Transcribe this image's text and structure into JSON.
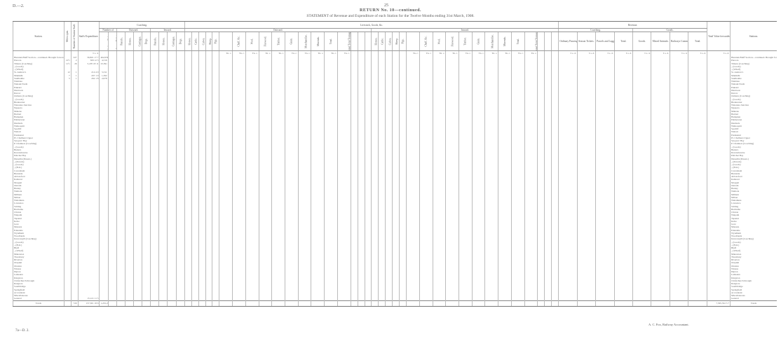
{
  "page": {
    "code": "D.—2.",
    "number": "25",
    "footer_code": "7a—D. 2.",
    "signature": "A. C. Fox, Railway Accountant."
  },
  "title": "RETURN No. 10—continued.",
  "subtitle": "STATEMENT of Revenue and Expenditure of each Station for the Twelve Months ending 31st March, 1908.",
  "headers": {
    "station": "Station.",
    "miles": "Miles open.",
    "staff": "Number of Station Staff.",
    "expenditure": "Staffs Expenditure.",
    "coaching": "Coaching.",
    "number_of": "Number of",
    "ordinary": "Ordinary Tickets.",
    "season": "Season Tickets.",
    "outward": "Outward.",
    "inward": "Inward.",
    "parcels": "Parcels.",
    "horses": "Horses.",
    "carriages": "Carriages.",
    "dogs": "Dogs.",
    "livestock": "Livestock, Goods, &c.",
    "cattle": "Cattle.",
    "calves": "Calves.",
    "sheep": "Sheep.",
    "pigs": "Pigs.",
    "goods_tonnage": "Goods Tonnage for Livestock, &c.",
    "chaff": "Chaff, &c.",
    "wool": "Wool.",
    "firewood": "Firewood.",
    "timber": "Timber.",
    "grain": "Grain.",
    "merchandise": "Merchandise.",
    "minerals": "Minerals.",
    "total": "Total.",
    "grand_total": "Grand Total Tonnage.",
    "revenue": "Revenue.",
    "ordinary_passengers": "Ordinary Passengers.",
    "season_tickets": "Season Tickets.",
    "parcels_luggage": "Parcels and Luggage.",
    "goods_section": "Goods.",
    "goods": "Goods.",
    "mixed": "Mixed Animals.",
    "commissions": "Railways Commissions.",
    "total_value": "Total Value forwarded.",
    "stations": "Stations."
  },
  "units": {
    "money": "£ s. d.",
    "tons": "Tn. c."
  },
  "rows": [
    {
      "station": "Hurunui-Bluff Section—continued. Brought forward",
      "miles": "",
      "staff": "327",
      "expenditure": "56,821 17 7",
      "ordinary": "462,639"
    },
    {
      "station": "Pareora",
      "miles": "12½",
      "staff": "2",
      "expenditure": "309 12 5",
      "ordinary": "4,316"
    },
    {
      "station": "Timaru (Coaching)",
      "miles": "11½",
      "staff": "26",
      "expenditure": "5,470 18 11",
      "ordinary": "23,391"
    },
    {
      "station": "„ (Goods)"
    },
    {
      "station": "„ (Wharf)"
    },
    {
      "station": "St. Andrew's",
      "miles": "12",
      "staff": "1",
      "expenditure": "214 4 9",
      "ordinary": "5,311"
    },
    {
      "station": "Makikihi",
      "miles": "7",
      "staff": "1",
      "expenditure": "207 1 0",
      "ordinary": "1,392"
    },
    {
      "station": "Studholme",
      "miles": "5",
      "staff": "1",
      "expenditure": "262 1 8",
      "ordinary": "2,678"
    },
    {
      "station": "Waimate"
    },
    {
      "station": "Waitaki North"
    },
    {
      "station": "Pukeuri"
    },
    {
      "station": "Duntroon"
    },
    {
      "station": "Kurow"
    },
    {
      "station": "Oamaru (Coaching)"
    },
    {
      "station": "„ (Goods)"
    },
    {
      "station": "Breakwater"
    },
    {
      "station": "Waiareka Junction"
    },
    {
      "station": "Ngapara"
    },
    {
      "station": "Maheno"
    },
    {
      "station": "Herbert"
    },
    {
      "station": "Hampden"
    },
    {
      "station": "Palmerston"
    },
    {
      "station": "Dunback"
    },
    {
      "station": "Waikouaiti"
    },
    {
      "station": "Seacliff"
    },
    {
      "station": "Waitati"
    },
    {
      "station": "Purakanui"
    },
    {
      "station": "Pt. Chalmers Upper"
    },
    {
      "station": "Sawyers' Bay"
    },
    {
      "station": "P. Chalmers (Coaching)"
    },
    {
      "station": "„ (Goods)"
    },
    {
      "station": "Burke's"
    },
    {
      "station": "Ravensbourne"
    },
    {
      "station": "Pelichet Bay"
    },
    {
      "station": "Dunedin (Passen.)"
    },
    {
      "station": "„ (Parcels)"
    },
    {
      "station": "„ (Goods)"
    },
    {
      "station": "„ (H.O.)"
    },
    {
      "station": "Caversham"
    },
    {
      "station": "Burnside"
    },
    {
      "station": "Abbotsford"
    },
    {
      "station": "Kaikorai"
    },
    {
      "station": "Mosgiel"
    },
    {
      "station": "Outram"
    },
    {
      "station": "Henley"
    },
    {
      "station": "Waihola"
    },
    {
      "station": "Milburn"
    },
    {
      "station": "Milton"
    },
    {
      "station": "Waitahuna"
    },
    {
      "station": "Lawrence"
    },
    {
      "station": "Stirling"
    },
    {
      "station": "Balclutha"
    },
    {
      "station": "Clinton"
    },
    {
      "station": "Waipahi"
    },
    {
      "station": "Tapanui"
    },
    {
      "station": "Kelso"
    },
    {
      "station": "Gore"
    },
    {
      "station": "Mataura"
    },
    {
      "station": "Edendale"
    },
    {
      "station": "Wyndham"
    },
    {
      "station": "Woodlands"
    },
    {
      "station": "Invercargill (Coaching)"
    },
    {
      "station": "„ (Goods)"
    },
    {
      "station": "„ (H.O.)"
    },
    {
      "station": "Bluff"
    },
    {
      "station": "„ (Wharf)"
    },
    {
      "station": "Makarewa"
    },
    {
      "station": "Thornbury"
    },
    {
      "station": "Riverton"
    },
    {
      "station": "Orepuki"
    },
    {
      "station": "Otautau"
    },
    {
      "station": "Winton"
    },
    {
      "station": "Dipton"
    },
    {
      "station": "Lumsden"
    },
    {
      "station": "Kingston"
    },
    {
      "station": "Christchurch through"
    },
    {
      "station": "Rangiora"
    },
    {
      "station": "Southbridge"
    },
    {
      "station": "Springfield"
    },
    {
      "station": "Accountant"
    },
    {
      "station": "Miscellaneous"
    },
    {
      "station": "General",
      "expenditure": "15,121 11 5"
    }
  ],
  "totals": {
    "label": "Totals",
    "staff": "720",
    "expenditure": "157,301 18 6",
    "ordinary": "1,201,239",
    "revenue_total": "7,305,552 3 7"
  }
}
